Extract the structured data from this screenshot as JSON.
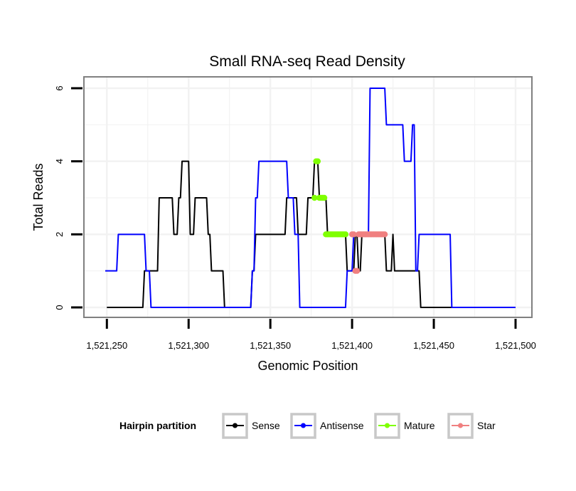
{
  "chart_data": {
    "type": "line",
    "title": "Small RNA-seq Read Density",
    "xlabel": "Genomic Position",
    "ylabel": "Total Reads",
    "xlim": [
      1521249,
      1521500
    ],
    "ylim": [
      -0.2,
      6.2
    ],
    "x_ticks": [
      1521250,
      1521300,
      1521350,
      1521400,
      1521450,
      1521500
    ],
    "x_tick_labels": [
      "1,521,250",
      "1,521,300",
      "1,521,350",
      "1,521,400",
      "1,521,450",
      "1,521,500"
    ],
    "y_ticks": [
      0,
      2,
      4,
      6
    ],
    "y_tick_labels": [
      "0",
      "2",
      "4",
      "6"
    ],
    "grid": true,
    "legend": {
      "title": "Hairpin partition",
      "position": "bottom",
      "entries": [
        {
          "name": "Sense",
          "color": "#000000"
        },
        {
          "name": "Antisense",
          "color": "#0000ff"
        },
        {
          "name": "Mature",
          "color": "#7fff00"
        },
        {
          "name": "Star",
          "color": "#f08080"
        }
      ]
    },
    "series": [
      {
        "name": "Sense",
        "color": "#000000",
        "style": "line",
        "points": [
          [
            1521250,
            0
          ],
          [
            1521272,
            0
          ],
          [
            1521273,
            1
          ],
          [
            1521281,
            1
          ],
          [
            1521282,
            3
          ],
          [
            1521290,
            3
          ],
          [
            1521291,
            2
          ],
          [
            1521293,
            2
          ],
          [
            1521294,
            3
          ],
          [
            1521295,
            3
          ],
          [
            1521296,
            4
          ],
          [
            1521300,
            4
          ],
          [
            1521301,
            2
          ],
          [
            1521303,
            2
          ],
          [
            1521304,
            3
          ],
          [
            1521311,
            3
          ],
          [
            1521312,
            2
          ],
          [
            1521313,
            2
          ],
          [
            1521314,
            1
          ],
          [
            1521321,
            1
          ],
          [
            1521322,
            0
          ],
          [
            1521338,
            0
          ],
          [
            1521339,
            1
          ],
          [
            1521340,
            1
          ],
          [
            1521341,
            2
          ],
          [
            1521359,
            2
          ],
          [
            1521360,
            3
          ],
          [
            1521366,
            3
          ],
          [
            1521367,
            2
          ],
          [
            1521372,
            2
          ],
          [
            1521373,
            3
          ],
          [
            1521376,
            3
          ],
          [
            1521377,
            4
          ],
          [
            1521379,
            4
          ],
          [
            1521380,
            3
          ],
          [
            1521384,
            3
          ],
          [
            1521385,
            2
          ],
          [
            1521396,
            2
          ],
          [
            1521397,
            1
          ],
          [
            1521401,
            1
          ],
          [
            1521402,
            2
          ],
          [
            1521403,
            2
          ],
          [
            1521404,
            1
          ],
          [
            1521405,
            1
          ],
          [
            1521406,
            2
          ],
          [
            1521420,
            2
          ],
          [
            1521421,
            1
          ],
          [
            1521424,
            1
          ],
          [
            1521425,
            2
          ],
          [
            1521426,
            1
          ],
          [
            1521441,
            1
          ],
          [
            1521442,
            0
          ],
          [
            1521500,
            0
          ]
        ]
      },
      {
        "name": "Antisense",
        "color": "#0000ff",
        "style": "line",
        "points": [
          [
            1521249,
            1
          ],
          [
            1521256,
            1
          ],
          [
            1521257,
            2
          ],
          [
            1521273,
            2
          ],
          [
            1521274,
            1
          ],
          [
            1521276,
            1
          ],
          [
            1521277,
            0
          ],
          [
            1521338,
            0
          ],
          [
            1521339,
            1
          ],
          [
            1521340,
            1
          ],
          [
            1521341,
            3
          ],
          [
            1521342,
            3
          ],
          [
            1521343,
            4
          ],
          [
            1521360,
            4
          ],
          [
            1521361,
            3
          ],
          [
            1521364,
            3
          ],
          [
            1521365,
            2
          ],
          [
            1521367,
            2
          ],
          [
            1521368,
            0
          ],
          [
            1521396,
            0
          ],
          [
            1521397,
            1
          ],
          [
            1521400,
            1
          ],
          [
            1521401,
            2
          ],
          [
            1521410,
            2
          ],
          [
            1521411,
            6
          ],
          [
            1521420,
            6
          ],
          [
            1521421,
            5
          ],
          [
            1521431,
            5
          ],
          [
            1521432,
            4
          ],
          [
            1521436,
            4
          ],
          [
            1521437,
            5
          ],
          [
            1521438,
            5
          ],
          [
            1521439,
            1
          ],
          [
            1521440,
            1
          ],
          [
            1521441,
            2
          ],
          [
            1521460,
            2
          ],
          [
            1521461,
            0
          ],
          [
            1521500,
            0
          ]
        ]
      },
      {
        "name": "Mature",
        "color": "#7fff00",
        "style": "dots",
        "points": [
          [
            1521377,
            3
          ],
          [
            1521378,
            4
          ],
          [
            1521379,
            4
          ],
          [
            1521380,
            3
          ],
          [
            1521381,
            3
          ],
          [
            1521382,
            3
          ],
          [
            1521383,
            3
          ],
          [
            1521384,
            2
          ],
          [
            1521385,
            2
          ],
          [
            1521386,
            2
          ],
          [
            1521387,
            2
          ],
          [
            1521388,
            2
          ],
          [
            1521389,
            2
          ],
          [
            1521390,
            2
          ],
          [
            1521391,
            2
          ],
          [
            1521392,
            2
          ],
          [
            1521393,
            2
          ],
          [
            1521394,
            2
          ],
          [
            1521395,
            2
          ],
          [
            1521396,
            2
          ]
        ]
      },
      {
        "name": "Star",
        "color": "#f08080",
        "style": "dots",
        "points": [
          [
            1521400,
            2
          ],
          [
            1521401,
            2
          ],
          [
            1521402,
            1
          ],
          [
            1521403,
            1
          ],
          [
            1521404,
            2
          ],
          [
            1521405,
            2
          ],
          [
            1521406,
            2
          ],
          [
            1521407,
            2
          ],
          [
            1521408,
            2
          ],
          [
            1521409,
            2
          ],
          [
            1521410,
            2
          ],
          [
            1521411,
            2
          ],
          [
            1521412,
            2
          ],
          [
            1521413,
            2
          ],
          [
            1521414,
            2
          ],
          [
            1521415,
            2
          ],
          [
            1521416,
            2
          ],
          [
            1521417,
            2
          ],
          [
            1521418,
            2
          ],
          [
            1521419,
            2
          ],
          [
            1521420,
            2
          ]
        ]
      }
    ]
  }
}
